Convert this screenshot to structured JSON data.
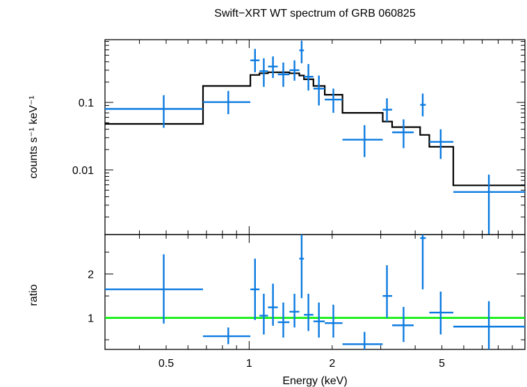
{
  "chart_data": [
    {
      "type": "step+errorbar",
      "title": "Swift−XRT WT spectrum of GRB 060825",
      "ylabel": "counts s⁻¹ keV⁻¹",
      "xscale": "log",
      "yscale": "log",
      "xlim": [
        0.3,
        10
      ],
      "ylim": [
        0.0011,
        0.85
      ],
      "y_tick_labels": [
        "0.01",
        "0.1"
      ],
      "y_tick_values": [
        0.01,
        0.1
      ],
      "data_color": "#0a7ae0",
      "model_color": "#000000",
      "data": [
        {
          "x": 0.49,
          "xlo": 0.3,
          "xhi": 0.68,
          "y": 0.08,
          "ylo": 0.042,
          "yhi": 0.128
        },
        {
          "x": 0.84,
          "xlo": 0.68,
          "xhi": 1.01,
          "y": 0.101,
          "ylo": 0.067,
          "yhi": 0.148
        },
        {
          "x": 1.05,
          "xlo": 1.01,
          "xhi": 1.09,
          "y": 0.42,
          "ylo": 0.28,
          "yhi": 0.62
        },
        {
          "x": 1.13,
          "xlo": 1.09,
          "xhi": 1.17,
          "y": 0.29,
          "ylo": 0.17,
          "yhi": 0.45
        },
        {
          "x": 1.22,
          "xlo": 1.17,
          "xhi": 1.27,
          "y": 0.34,
          "ylo": 0.23,
          "yhi": 0.48
        },
        {
          "x": 1.33,
          "xlo": 1.27,
          "xhi": 1.4,
          "y": 0.26,
          "ylo": 0.17,
          "yhi": 0.39
        },
        {
          "x": 1.46,
          "xlo": 1.4,
          "xhi": 1.52,
          "y": 0.3,
          "ylo": 0.21,
          "yhi": 0.42
        },
        {
          "x": 1.55,
          "xlo": 1.52,
          "xhi": 1.58,
          "y": 0.59,
          "ylo": 0.38,
          "yhi": 0.82
        },
        {
          "x": 1.64,
          "xlo": 1.58,
          "xhi": 1.71,
          "y": 0.24,
          "ylo": 0.15,
          "yhi": 0.37
        },
        {
          "x": 1.79,
          "xlo": 1.71,
          "xhi": 1.88,
          "y": 0.16,
          "ylo": 0.09,
          "yhi": 0.25
        },
        {
          "x": 2.02,
          "xlo": 1.88,
          "xhi": 2.18,
          "y": 0.11,
          "ylo": 0.07,
          "yhi": 0.16
        },
        {
          "x": 2.62,
          "xlo": 2.18,
          "xhi": 3.05,
          "y": 0.028,
          "ylo": 0.0155,
          "yhi": 0.046
        },
        {
          "x": 3.16,
          "xlo": 3.05,
          "xhi": 3.3,
          "y": 0.078,
          "ylo": 0.052,
          "yhi": 0.115
        },
        {
          "x": 3.63,
          "xlo": 3.3,
          "xhi": 3.95,
          "y": 0.036,
          "ylo": 0.021,
          "yhi": 0.056
        },
        {
          "x": 4.26,
          "xlo": 4.17,
          "xhi": 4.37,
          "y": 0.092,
          "ylo": 0.062,
          "yhi": 0.135
        },
        {
          "x": 4.95,
          "xlo": 4.5,
          "xhi": 5.5,
          "y": 0.026,
          "ylo": 0.0145,
          "yhi": 0.04
        },
        {
          "x": 7.4,
          "xlo": 5.5,
          "xhi": 10.0,
          "y": 0.0047,
          "ylo": 0.0011,
          "yhi": 0.0085
        }
      ],
      "model_steps": [
        {
          "xlo": 0.3,
          "xhi": 0.68,
          "y": 0.048
        },
        {
          "xlo": 0.68,
          "xhi": 1.01,
          "y": 0.175
        },
        {
          "xlo": 1.01,
          "xhi": 1.09,
          "y": 0.255
        },
        {
          "xlo": 1.09,
          "xhi": 1.17,
          "y": 0.27
        },
        {
          "xlo": 1.17,
          "xhi": 1.4,
          "y": 0.28
        },
        {
          "xlo": 1.4,
          "xhi": 1.52,
          "y": 0.27
        },
        {
          "xlo": 1.52,
          "xhi": 1.58,
          "y": 0.25
        },
        {
          "xlo": 1.58,
          "xhi": 1.71,
          "y": 0.22
        },
        {
          "xlo": 1.71,
          "xhi": 1.88,
          "y": 0.175
        },
        {
          "xlo": 1.88,
          "xhi": 2.18,
          "y": 0.13
        },
        {
          "xlo": 2.18,
          "xhi": 3.05,
          "y": 0.07
        },
        {
          "xlo": 3.05,
          "xhi": 3.3,
          "y": 0.052
        },
        {
          "xlo": 3.3,
          "xhi": 4.17,
          "y": 0.043
        },
        {
          "xlo": 4.17,
          "xhi": 4.5,
          "y": 0.033
        },
        {
          "xlo": 4.5,
          "xhi": 5.5,
          "y": 0.022
        },
        {
          "xlo": 5.5,
          "xhi": 10.0,
          "y": 0.0059
        }
      ]
    },
    {
      "type": "errorbar",
      "xlabel": "Energy (keV)",
      "ylabel": "ratio",
      "xscale": "log",
      "yscale": "linear",
      "xlim": [
        0.3,
        10
      ],
      "ylim": [
        0.28,
        2.9
      ],
      "x_tick_labels": [
        "0.5",
        "1",
        "2",
        "5"
      ],
      "x_tick_values": [
        0.5,
        1,
        2,
        5
      ],
      "y_tick_labels": [
        "1",
        "2"
      ],
      "y_tick_values": [
        1,
        2
      ],
      "data_color": "#0a7ae0",
      "reference_line": {
        "y": 1,
        "color": "#00ee00"
      },
      "data": [
        {
          "x": 0.49,
          "xlo": 0.3,
          "xhi": 0.68,
          "y": 1.65,
          "ylo": 0.87,
          "yhi": 2.45
        },
        {
          "x": 0.84,
          "xlo": 0.68,
          "xhi": 1.01,
          "y": 0.58,
          "ylo": 0.4,
          "yhi": 0.78
        },
        {
          "x": 1.05,
          "xlo": 1.01,
          "xhi": 1.09,
          "y": 1.65,
          "ylo": 0.95,
          "yhi": 2.35
        },
        {
          "x": 1.13,
          "xlo": 1.09,
          "xhi": 1.17,
          "y": 1.05,
          "ylo": 0.62,
          "yhi": 1.55
        },
        {
          "x": 1.22,
          "xlo": 1.17,
          "xhi": 1.27,
          "y": 1.24,
          "ylo": 0.82,
          "yhi": 1.78
        },
        {
          "x": 1.33,
          "xlo": 1.27,
          "xhi": 1.4,
          "y": 0.9,
          "ylo": 0.55,
          "yhi": 1.35
        },
        {
          "x": 1.46,
          "xlo": 1.4,
          "xhi": 1.52,
          "y": 1.14,
          "ylo": 0.78,
          "yhi": 1.55
        },
        {
          "x": 1.55,
          "xlo": 1.52,
          "xhi": 1.58,
          "y": 2.35,
          "ylo": 1.45,
          "yhi": 2.9
        },
        {
          "x": 1.64,
          "xlo": 1.58,
          "xhi": 1.71,
          "y": 1.07,
          "ylo": 0.7,
          "yhi": 1.55
        },
        {
          "x": 1.79,
          "xlo": 1.71,
          "xhi": 1.88,
          "y": 0.92,
          "ylo": 0.55,
          "yhi": 1.35
        },
        {
          "x": 2.02,
          "xlo": 1.88,
          "xhi": 2.18,
          "y": 0.88,
          "ylo": 0.55,
          "yhi": 1.3
        },
        {
          "x": 2.62,
          "xlo": 2.18,
          "xhi": 3.05,
          "y": 0.4,
          "ylo": 0.28,
          "yhi": 0.68
        },
        {
          "x": 3.16,
          "xlo": 3.05,
          "xhi": 3.3,
          "y": 1.5,
          "ylo": 1.0,
          "yhi": 2.2
        },
        {
          "x": 3.63,
          "xlo": 3.3,
          "xhi": 3.95,
          "y": 0.83,
          "ylo": 0.45,
          "yhi": 1.25
        },
        {
          "x": 4.26,
          "xlo": 4.17,
          "xhi": 4.37,
          "y": 2.82,
          "ylo": 1.65,
          "yhi": 2.9
        },
        {
          "x": 4.95,
          "xlo": 4.5,
          "xhi": 5.5,
          "y": 1.12,
          "ylo": 0.62,
          "yhi": 1.6
        },
        {
          "x": 7.4,
          "xlo": 5.5,
          "xhi": 10.0,
          "y": 0.8,
          "ylo": 0.28,
          "yhi": 1.38
        }
      ]
    }
  ]
}
